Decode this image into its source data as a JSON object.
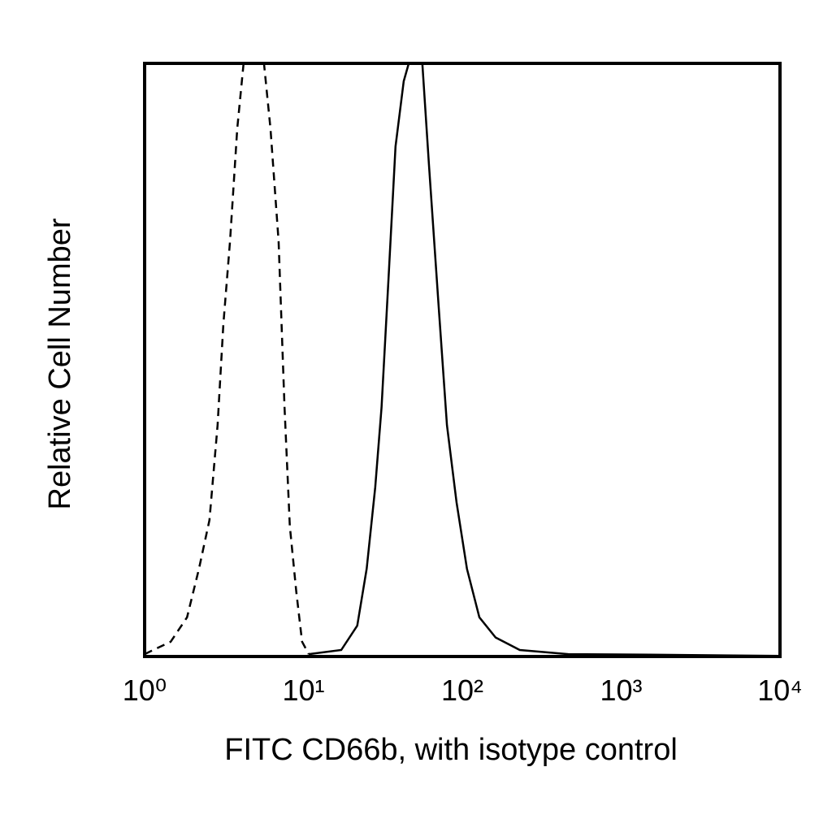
{
  "chart_data": {
    "type": "histogram-line",
    "xlabel": "FITC CD66b, with isotype control",
    "ylabel": "Relative Cell Number",
    "xscale": "log",
    "xlim": [
      1,
      10000
    ],
    "ylim": [
      0,
      100
    ],
    "xticks": [
      {
        "value": 1,
        "label": "10⁰"
      },
      {
        "value": 10,
        "label": "10¹"
      },
      {
        "value": 100,
        "label": "10²"
      },
      {
        "value": 1000,
        "label": "10³"
      },
      {
        "value": 10000,
        "label": "10⁴"
      }
    ],
    "series": [
      {
        "color": "#000000",
        "style": "dashed",
        "x": [
          1,
          1.46,
          1.85,
          2.2,
          2.56,
          2.88,
          3.13,
          3.45,
          3.83,
          4.2,
          5.64,
          6.2,
          6.97,
          7.6,
          8.2,
          9.0,
          9.8,
          10.8
        ],
        "values": [
          0.4,
          2.5,
          6.6,
          14.8,
          23,
          39,
          56,
          70,
          89,
          100,
          100,
          89,
          70,
          42,
          22,
          11,
          2.5,
          0.4
        ]
      },
      {
        "color": "#000000",
        "style": "solid",
        "x": [
          10.8,
          17.3,
          21.8,
          25,
          28.3,
          31,
          34.2,
          38,
          42.8,
          46,
          56,
          61.6,
          71,
          80,
          92,
          107,
          128,
          162,
          230,
          465,
          1510,
          10000
        ],
        "values": [
          0.4,
          1.1,
          5.2,
          14.8,
          28.5,
          42,
          63,
          86,
          97,
          100,
          100,
          83,
          59,
          39,
          26,
          14.8,
          6.6,
          3.2,
          1.1,
          0.4,
          0.3,
          0.1
        ]
      }
    ]
  }
}
